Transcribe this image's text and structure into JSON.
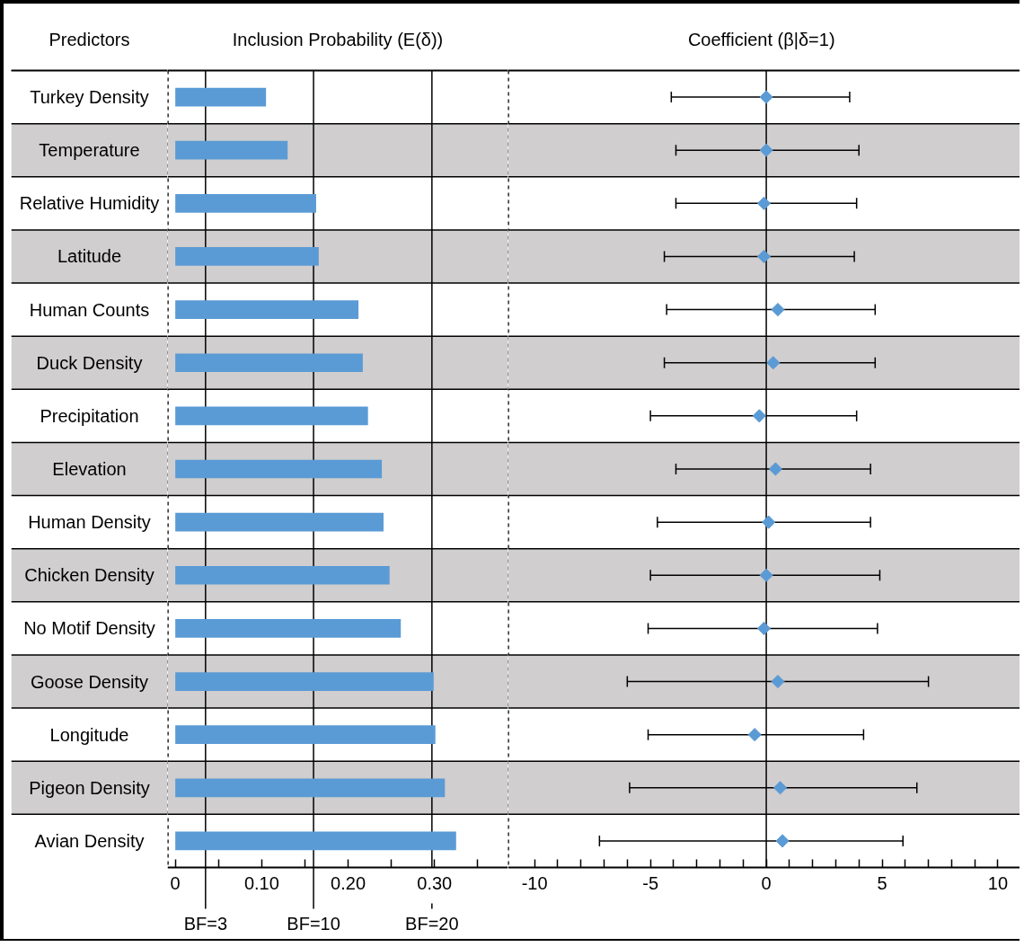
{
  "chart_data": [
    {
      "type": "bar",
      "orientation": "horizontal",
      "title": "Inclusion Probability (E(δ))",
      "ylabel": "Predictors",
      "categories": [
        "Turkey Density",
        "Temperature",
        "Relative Humidity",
        "Latitude",
        "Human Counts",
        "Duck Density",
        "Precipitation",
        "Elevation",
        "Human Density",
        "Chicken Density",
        "No Motif Density",
        "Goose Density",
        "Longitude",
        "Pigeon Density",
        "Avian Density"
      ],
      "values": [
        0.105,
        0.13,
        0.163,
        0.166,
        0.212,
        0.217,
        0.223,
        0.239,
        0.241,
        0.248,
        0.261,
        0.299,
        0.301,
        0.312,
        0.325
      ],
      "color": "#5b9bd5",
      "xlim": [
        -0.009,
        0.385
      ],
      "xticks": [
        0,
        {
          "value": 0.05,
          "label": null
        },
        {
          "value": 0.1,
          "label": "0.10"
        },
        {
          "value": 0.15,
          "label": null
        },
        {
          "value": 0.2,
          "label": "0.20"
        },
        {
          "value": 0.25,
          "label": null
        },
        {
          "value": 0.3,
          "label": "0.30"
        },
        {
          "value": 0.35,
          "label": null
        }
      ],
      "ref_lines": [
        {
          "axis": "x",
          "value": 0.035,
          "color": "#000000"
        },
        {
          "axis": "x",
          "value": 0.16,
          "color": "#000000"
        },
        {
          "axis": "x",
          "value": 0.297,
          "color": "#000000"
        }
      ],
      "annotations": [
        "BF=3",
        "BF=10",
        "BF=20"
      ],
      "bands": [
        {
          "axis": "y",
          "from": "Temperature",
          "to": "Temperature",
          "color": "#d0cece"
        },
        {
          "axis": "y",
          "from": "Latitude",
          "to": "Latitude",
          "color": "#d0cece"
        },
        {
          "axis": "y",
          "from": "Duck Density",
          "to": "Duck Density",
          "color": "#d0cece"
        },
        {
          "axis": "y",
          "from": "Elevation",
          "to": "Elevation",
          "color": "#d0cece"
        },
        {
          "axis": "y",
          "from": "Chicken Density",
          "to": "Chicken Density",
          "color": "#d0cece"
        },
        {
          "axis": "y",
          "from": "Goose Density",
          "to": "Goose Density",
          "color": "#d0cece"
        },
        {
          "axis": "y",
          "from": "Pigeon Density",
          "to": "Pigeon Density",
          "color": "#d0cece"
        }
      ],
      "grid": false
    },
    {
      "type": "scatter",
      "orientation": "horizontal",
      "title": "Coefficient  (β|δ=1)",
      "categories": [
        "Turkey Density",
        "Temperature",
        "Relative Humidity",
        "Latitude",
        "Human Counts",
        "Duck Density",
        "Precipitation",
        "Elevation",
        "Human Density",
        "Chicken Density",
        "No Motif Density",
        "Goose Density",
        "Longitude",
        "Pigeon Density",
        "Avian Density"
      ],
      "values": [
        0.0,
        0.0,
        -0.1,
        -0.1,
        0.5,
        0.3,
        -0.3,
        0.4,
        0.1,
        0.0,
        -0.1,
        0.5,
        -0.5,
        0.6,
        0.7
      ],
      "errors": [
        [
          -4.1,
          3.6
        ],
        [
          -3.9,
          4.0
        ],
        [
          -3.9,
          3.9
        ],
        [
          -4.4,
          3.8
        ],
        [
          -4.3,
          4.7
        ],
        [
          -4.4,
          4.7
        ],
        [
          -5.0,
          3.9
        ],
        [
          -3.9,
          4.5
        ],
        [
          -4.7,
          4.5
        ],
        [
          -5.0,
          4.9
        ],
        [
          -5.1,
          4.8
        ],
        [
          -6.0,
          7.0
        ],
        [
          -5.1,
          4.2
        ],
        [
          -5.9,
          6.5
        ],
        [
          -7.2,
          5.9
        ]
      ],
      "color": "#5b9bd5",
      "marker": "diamond",
      "xlim": [
        -11.15,
        10.95
      ],
      "xticks": [
        -10,
        {
          "value": -9,
          "label": null
        },
        {
          "value": -8,
          "label": null
        },
        {
          "value": -7,
          "label": null
        },
        {
          "value": -6,
          "label": null
        },
        -5,
        {
          "value": -4,
          "label": null
        },
        {
          "value": -3,
          "label": null
        },
        {
          "value": -2,
          "label": null
        },
        {
          "value": -1,
          "label": null
        },
        0,
        {
          "value": 1,
          "label": null
        },
        {
          "value": 2,
          "label": null
        },
        {
          "value": 3,
          "label": null
        },
        {
          "value": 4,
          "label": null
        },
        5,
        {
          "value": 6,
          "label": null
        },
        {
          "value": 7,
          "label": null
        },
        {
          "value": 8,
          "label": null
        },
        {
          "value": 9,
          "label": null
        },
        10
      ],
      "ref_lines": [
        {
          "axis": "x",
          "value": 0,
          "color": "#000000"
        }
      ],
      "bands": [
        {
          "axis": "y",
          "from": "Temperature",
          "to": "Temperature",
          "color": "#d0cece"
        },
        {
          "axis": "y",
          "from": "Latitude",
          "to": "Latitude",
          "color": "#d0cece"
        },
        {
          "axis": "y",
          "from": "Duck Density",
          "to": "Duck Density",
          "color": "#d0cece"
        },
        {
          "axis": "y",
          "from": "Elevation",
          "to": "Elevation",
          "color": "#d0cece"
        },
        {
          "axis": "y",
          "from": "Chicken Density",
          "to": "Chicken Density",
          "color": "#d0cece"
        },
        {
          "axis": "y",
          "from": "Goose Density",
          "to": "Goose Density",
          "color": "#d0cece"
        },
        {
          "axis": "y",
          "from": "Pigeon Density",
          "to": "Pigeon Density",
          "color": "#d0cece"
        }
      ],
      "grid": false,
      "tick_labels": "x"
    }
  ]
}
